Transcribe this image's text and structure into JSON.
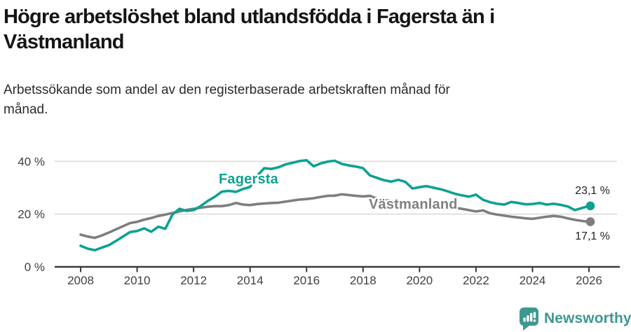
{
  "header": {
    "title": "Högre arbetslöshet bland utlandsfödda i Fagersta än i Västmanland",
    "title_lines": [
      "Högre arbetslöshet bland utlandsfödda i Fagersta än i",
      "Västmanland"
    ],
    "subtitle": "Arbetssökande som andel av den registerbaserade arbetskraften månad för månad.",
    "subtitle_lines": [
      "Arbetssökande som andel av den registerbaserade arbetskraften månad för",
      "månad."
    ]
  },
  "chart_data": {
    "type": "line",
    "title": "Högre arbetslöshet bland utlandsfödda i Fagersta än i Västmanland",
    "subtitle": "Arbetssökande som andel av den registerbaserade arbetskraften månad för månad.",
    "x_start": 2008,
    "x_step": 0.25,
    "x_ticks": [
      "2008",
      "2010",
      "2012",
      "2014",
      "2016",
      "2018",
      "2020",
      "2022",
      "2024",
      "2026"
    ],
    "y_ticks": [
      {
        "value": 0,
        "label": "0 %"
      },
      {
        "value": 20,
        "label": "20 %"
      },
      {
        "value": 40,
        "label": "40 %"
      }
    ],
    "ylim": [
      0,
      44
    ],
    "xlim": [
      2008,
      2027
    ],
    "grid": "horizontal",
    "legend": "inline-labels",
    "series": [
      {
        "name": "Fagersta",
        "color": "#0DA192",
        "end_value": 23.1,
        "end_label": "23,1 %",
        "values": [
          8.0,
          6.9,
          6.3,
          7.3,
          8.2,
          9.8,
          11.5,
          13.2,
          13.6,
          14.6,
          13.3,
          15.2,
          14.4,
          19.8,
          22.0,
          21.2,
          21.5,
          23.0,
          25.0,
          26.5,
          28.5,
          28.8,
          28.4,
          29.5,
          30.3,
          34.5,
          37.4,
          37.1,
          37.7,
          38.8,
          39.4,
          40.1,
          40.4,
          38.1,
          39.2,
          39.9,
          40.2,
          39.0,
          38.4,
          38.0,
          37.4,
          34.6,
          33.7,
          32.8,
          32.3,
          33.0,
          32.2,
          29.7,
          30.2,
          30.6,
          30.0,
          29.4,
          28.6,
          27.7,
          27.1,
          26.6,
          27.4,
          25.4,
          24.5,
          23.9,
          23.6,
          24.6,
          24.2,
          23.7,
          23.8,
          24.2,
          23.6,
          23.9,
          23.5,
          22.9,
          21.5,
          22.3,
          23.1
        ]
      },
      {
        "name": "Västmanland",
        "color": "#7E7E7E",
        "end_value": 17.1,
        "end_label": "17,1 %",
        "values": [
          12.2,
          11.5,
          11.0,
          11.9,
          13.0,
          14.2,
          15.4,
          16.6,
          17.1,
          17.9,
          18.5,
          19.3,
          19.8,
          20.4,
          21.0,
          21.6,
          22.0,
          22.4,
          22.8,
          23.0,
          23.0,
          23.4,
          24.2,
          23.6,
          23.4,
          23.8,
          24.0,
          24.2,
          24.3,
          24.7,
          25.1,
          25.5,
          25.7,
          26.0,
          26.5,
          26.9,
          27.0,
          27.5,
          27.2,
          26.9,
          26.7,
          26.9,
          25.8,
          25.3,
          25.0,
          24.7,
          24.4,
          24.1,
          23.8,
          23.6,
          23.9,
          23.4,
          22.9,
          22.4,
          22.0,
          21.5,
          21.0,
          21.4,
          20.3,
          19.8,
          19.4,
          19.0,
          18.7,
          18.4,
          18.2,
          18.6,
          19.0,
          19.3,
          19.0,
          18.4,
          17.8,
          17.4,
          17.1
        ]
      }
    ]
  },
  "footer": {
    "brand": "Newsworthy"
  },
  "colors": {
    "accent_teal": "#0DA192",
    "line_gray": "#7E7E7E",
    "brand_teal": "#3F978F",
    "grid": "#DCDCDC",
    "axis": "#3A3A3A",
    "tick_text": "#3F3F3F"
  }
}
